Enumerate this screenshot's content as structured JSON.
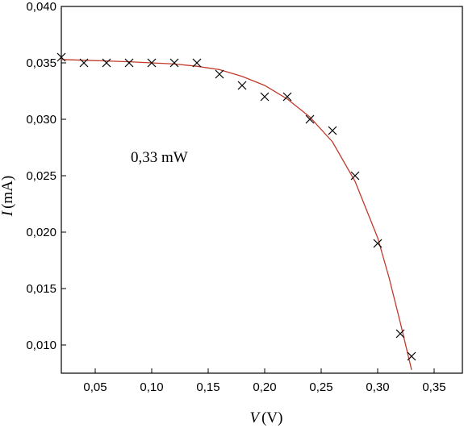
{
  "chart_data": {
    "type": "scatter",
    "title": "",
    "xlabel_var": "V",
    "xlabel_unit": "(V)",
    "ylabel_var": "I",
    "ylabel_unit": "(mA)",
    "xlim": [
      0.02,
      0.375
    ],
    "ylim": [
      0.0075,
      0.04
    ],
    "x_ticks": [
      0.05,
      0.1,
      0.15,
      0.2,
      0.25,
      0.3,
      0.35
    ],
    "x_tick_labels": [
      "0,05",
      "0,10",
      "0,15",
      "0,20",
      "0,25",
      "0,30",
      "0,35"
    ],
    "y_ticks": [
      0.01,
      0.015,
      0.02,
      0.025,
      0.03,
      0.035,
      0.04
    ],
    "y_tick_labels": [
      "0,010",
      "0,015",
      "0,020",
      "0,025",
      "0,030",
      "0,035",
      "0,040"
    ],
    "grid": false,
    "annotation": "0,33 mW",
    "series": [
      {
        "kind": "markers",
        "marker": "x",
        "color": "#000000",
        "x": [
          0.02,
          0.04,
          0.06,
          0.08,
          0.1,
          0.12,
          0.14,
          0.16,
          0.18,
          0.2,
          0.22,
          0.24,
          0.26,
          0.28,
          0.3,
          0.32,
          0.33
        ],
        "y": [
          0.0355,
          0.035,
          0.035,
          0.035,
          0.035,
          0.035,
          0.035,
          0.034,
          0.033,
          0.032,
          0.032,
          0.03,
          0.029,
          0.025,
          0.019,
          0.011,
          0.009
        ]
      },
      {
        "kind": "fit-line",
        "color": "#c0392b",
        "x": [
          0.02,
          0.05,
          0.08,
          0.1,
          0.12,
          0.14,
          0.16,
          0.18,
          0.2,
          0.22,
          0.24,
          0.26,
          0.28,
          0.3,
          0.31,
          0.32,
          0.33
        ],
        "y": [
          0.0353,
          0.0352,
          0.0351,
          0.035,
          0.0349,
          0.0347,
          0.0344,
          0.0338,
          0.033,
          0.0318,
          0.0302,
          0.028,
          0.0245,
          0.0195,
          0.016,
          0.012,
          0.0078
        ]
      }
    ]
  }
}
